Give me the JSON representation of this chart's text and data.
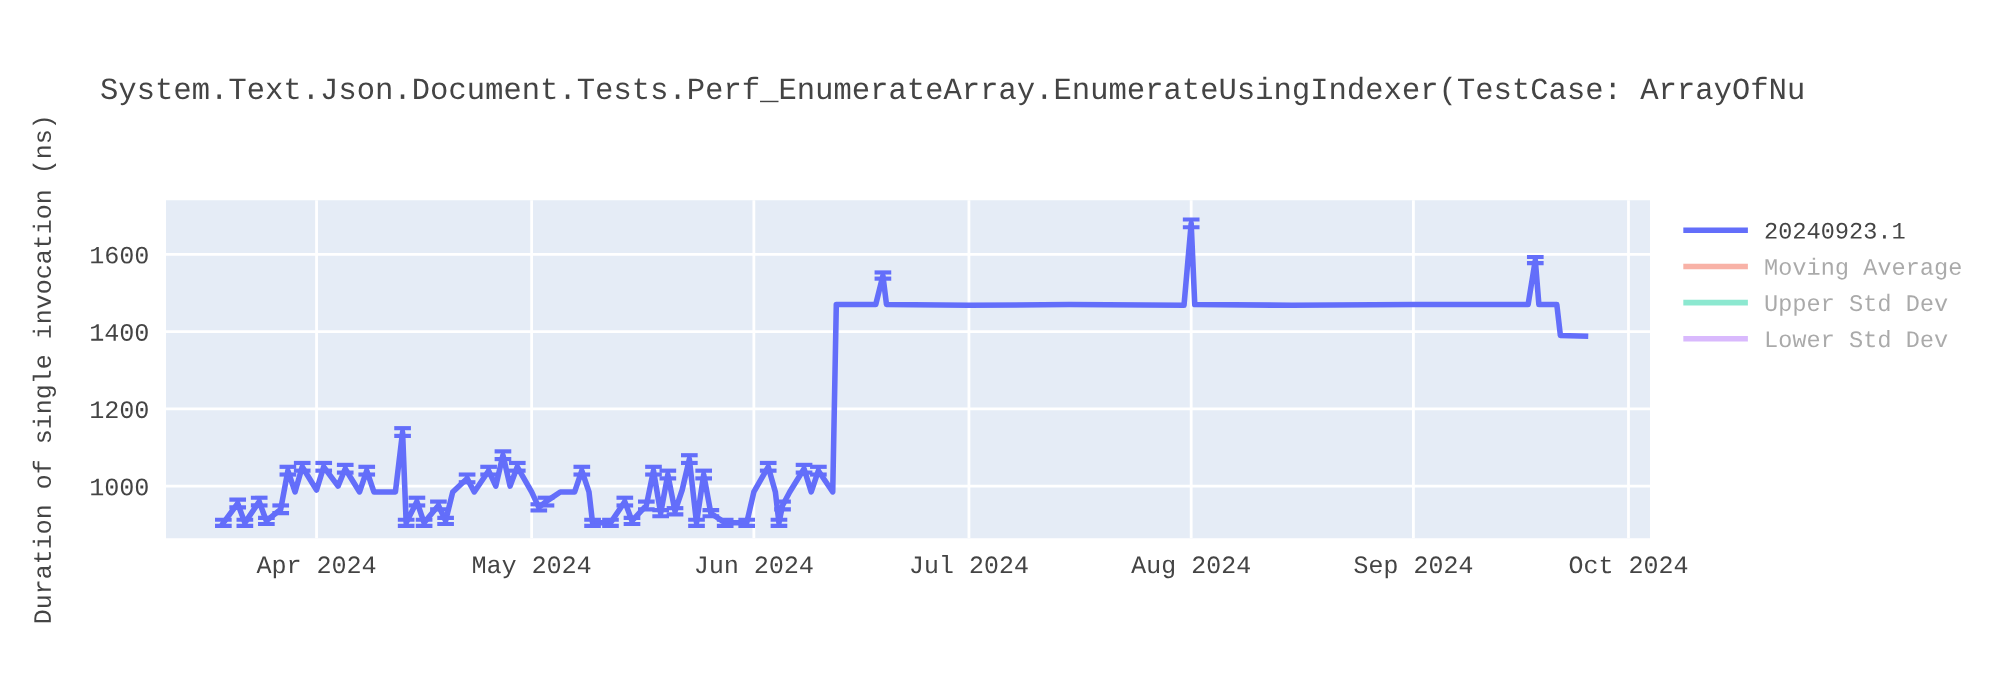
{
  "chart_data": {
    "type": "line",
    "title": "System.Text.Json.Document.Tests.Perf_EnumerateArray.EnumerateUsingIndexer(TestCase: ArrayOfNu",
    "ylabel": "Duration of single invocation (ns)",
    "xlim": [
      "2024-03-11",
      "2024-10-04"
    ],
    "ylim": [
      865,
      1740
    ],
    "xticks": [
      {
        "value": "2024-04-01",
        "label": "Apr 2024"
      },
      {
        "value": "2024-05-01",
        "label": "May 2024"
      },
      {
        "value": "2024-06-01",
        "label": "Jun 2024"
      },
      {
        "value": "2024-07-01",
        "label": "Jul 2024"
      },
      {
        "value": "2024-08-01",
        "label": "Aug 2024"
      },
      {
        "value": "2024-09-01",
        "label": "Sep 2024"
      },
      {
        "value": "2024-10-01",
        "label": "Oct 2024"
      }
    ],
    "yticks": [
      1000,
      1200,
      1400,
      1600
    ],
    "grid": true,
    "legend": "top right",
    "marker": "none",
    "line_style": "solid",
    "series": [
      {
        "name": "20240923.1",
        "color": "#636efa",
        "x": [
          "2024-03-19",
          "2024-03-21",
          "2024-03-22",
          "2024-03-24",
          "2024-03-25",
          "2024-03-27",
          "2024-03-28",
          "2024-03-29",
          "2024-03-30",
          "2024-04-01",
          "2024-04-02",
          "2024-04-04",
          "2024-04-05",
          "2024-04-07",
          "2024-04-08",
          "2024-04-09",
          "2024-04-12",
          "2024-04-13",
          "2024-04-13T12:00",
          "2024-04-15",
          "2024-04-16",
          "2024-04-18",
          "2024-04-19",
          "2024-04-20",
          "2024-04-22",
          "2024-04-23",
          "2024-04-25",
          "2024-04-26",
          "2024-04-27",
          "2024-04-28",
          "2024-04-29",
          "2024-05-01",
          "2024-05-02",
          "2024-05-03",
          "2024-05-05",
          "2024-05-07",
          "2024-05-08",
          "2024-05-09",
          "2024-05-09T12:00",
          "2024-05-12",
          "2024-05-14",
          "2024-05-15",
          "2024-05-17",
          "2024-05-18",
          "2024-05-19",
          "2024-05-20",
          "2024-05-21",
          "2024-05-22",
          "2024-05-23",
          "2024-05-24",
          "2024-05-25",
          "2024-05-26",
          "2024-05-28",
          "2024-05-31",
          "2024-06-01",
          "2024-06-03",
          "2024-06-04",
          "2024-06-04T12:00",
          "2024-06-05",
          "2024-06-06",
          "2024-06-08",
          "2024-06-09",
          "2024-06-10",
          "2024-06-12",
          "2024-06-12T12:00",
          "2024-06-18",
          "2024-06-19",
          "2024-06-19T12:00",
          "2024-07-01",
          "2024-07-15",
          "2024-07-31",
          "2024-08-01",
          "2024-08-01T12:00",
          "2024-08-15",
          "2024-09-01",
          "2024-09-17",
          "2024-09-18",
          "2024-09-18T12:00",
          "2024-09-21",
          "2024-09-21T12:00",
          "2024-09-25"
        ],
        "values": [
          905,
          955,
          905,
          960,
          910,
          940,
          1040,
          985,
          1050,
          990,
          1050,
          1000,
          1045,
          985,
          1040,
          985,
          985,
          1140,
          905,
          960,
          905,
          950,
          910,
          985,
          1020,
          985,
          1040,
          1000,
          1080,
          1000,
          1050,
          985,
          945,
          960,
          985,
          985,
          1040,
          985,
          905,
          905,
          960,
          910,
          950,
          1040,
          930,
          1030,
          935,
          990,
          1070,
          905,
          1030,
          930,
          905,
          905,
          985,
          1050,
          985,
          905,
          950,
          985,
          1045,
          985,
          1040,
          985,
          1470,
          1470,
          1545,
          1470,
          1468,
          1470,
          1468,
          1680,
          1470,
          1468,
          1470,
          1470,
          1585,
          1470,
          1470,
          1390,
          1388
        ],
        "errors": [
          8,
          10,
          8,
          10,
          8,
          10,
          10,
          null,
          10,
          null,
          10,
          null,
          10,
          null,
          10,
          null,
          null,
          10,
          8,
          10,
          8,
          10,
          8,
          null,
          10,
          null,
          10,
          null,
          10,
          null,
          10,
          null,
          8,
          10,
          null,
          null,
          10,
          null,
          8,
          8,
          10,
          8,
          10,
          10,
          8,
          10,
          8,
          null,
          10,
          8,
          10,
          8,
          8,
          8,
          null,
          10,
          null,
          8,
          10,
          null,
          10,
          null,
          10,
          null,
          null,
          null,
          8,
          null,
          null,
          null,
          null,
          10,
          null,
          null,
          null,
          null,
          8,
          null,
          null,
          null,
          null
        ]
      },
      {
        "name": "Moving Average",
        "color": "#ef553b"
      },
      {
        "name": "Upper Std Dev",
        "color": "#00cc96"
      },
      {
        "name": "Lower Std Dev",
        "color": "#ab63fa"
      }
    ]
  }
}
